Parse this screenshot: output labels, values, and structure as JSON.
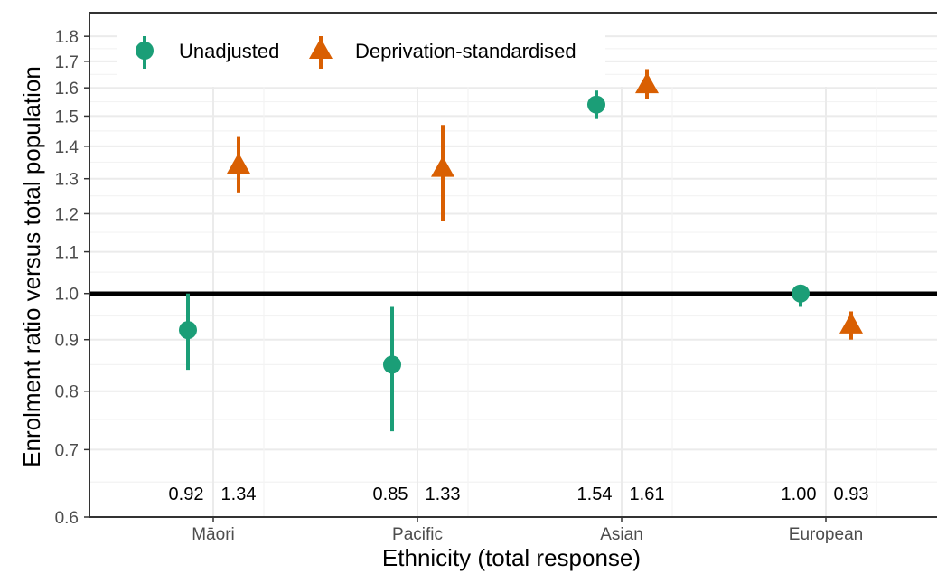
{
  "colors": {
    "unadjusted": "#1b9e77",
    "standardised": "#d95f02",
    "reference_line": "#000000"
  },
  "chart_data": {
    "type": "scatter",
    "xlabel": "Ethnicity (total response)",
    "ylabel": "Enrolment ratio versus total population",
    "y_scale": "log",
    "ylim": [
      0.6,
      1.9
    ],
    "y_ticks": [
      "0.6",
      "0.7",
      "0.8",
      "0.9",
      "1.0",
      "1.1",
      "1.2",
      "1.3",
      "1.4",
      "1.5",
      "1.6",
      "1.7",
      "1.8"
    ],
    "categories": [
      "Māori",
      "Pacific",
      "Asian",
      "European"
    ],
    "reference_line": 1.0,
    "legend": {
      "position": "top-left",
      "marker_icons": [
        "circle-icon",
        "triangle-icon"
      ]
    },
    "grid": true,
    "series": [
      {
        "name": "Unadjusted",
        "marker": "circle",
        "values": [
          0.92,
          0.85,
          1.54,
          1.0
        ],
        "lower": [
          0.84,
          0.73,
          1.49,
          0.97
        ],
        "upper": [
          1.0,
          0.97,
          1.59,
          1.02
        ],
        "labels": [
          "0.92",
          "0.85",
          "1.54",
          "1.00"
        ]
      },
      {
        "name": "Deprivation-standardised",
        "marker": "triangle",
        "values": [
          1.34,
          1.33,
          1.61,
          0.93
        ],
        "lower": [
          1.26,
          1.18,
          1.56,
          0.9
        ],
        "upper": [
          1.43,
          1.47,
          1.67,
          0.96
        ],
        "labels": [
          "1.34",
          "1.33",
          "1.61",
          "0.93"
        ]
      }
    ]
  }
}
